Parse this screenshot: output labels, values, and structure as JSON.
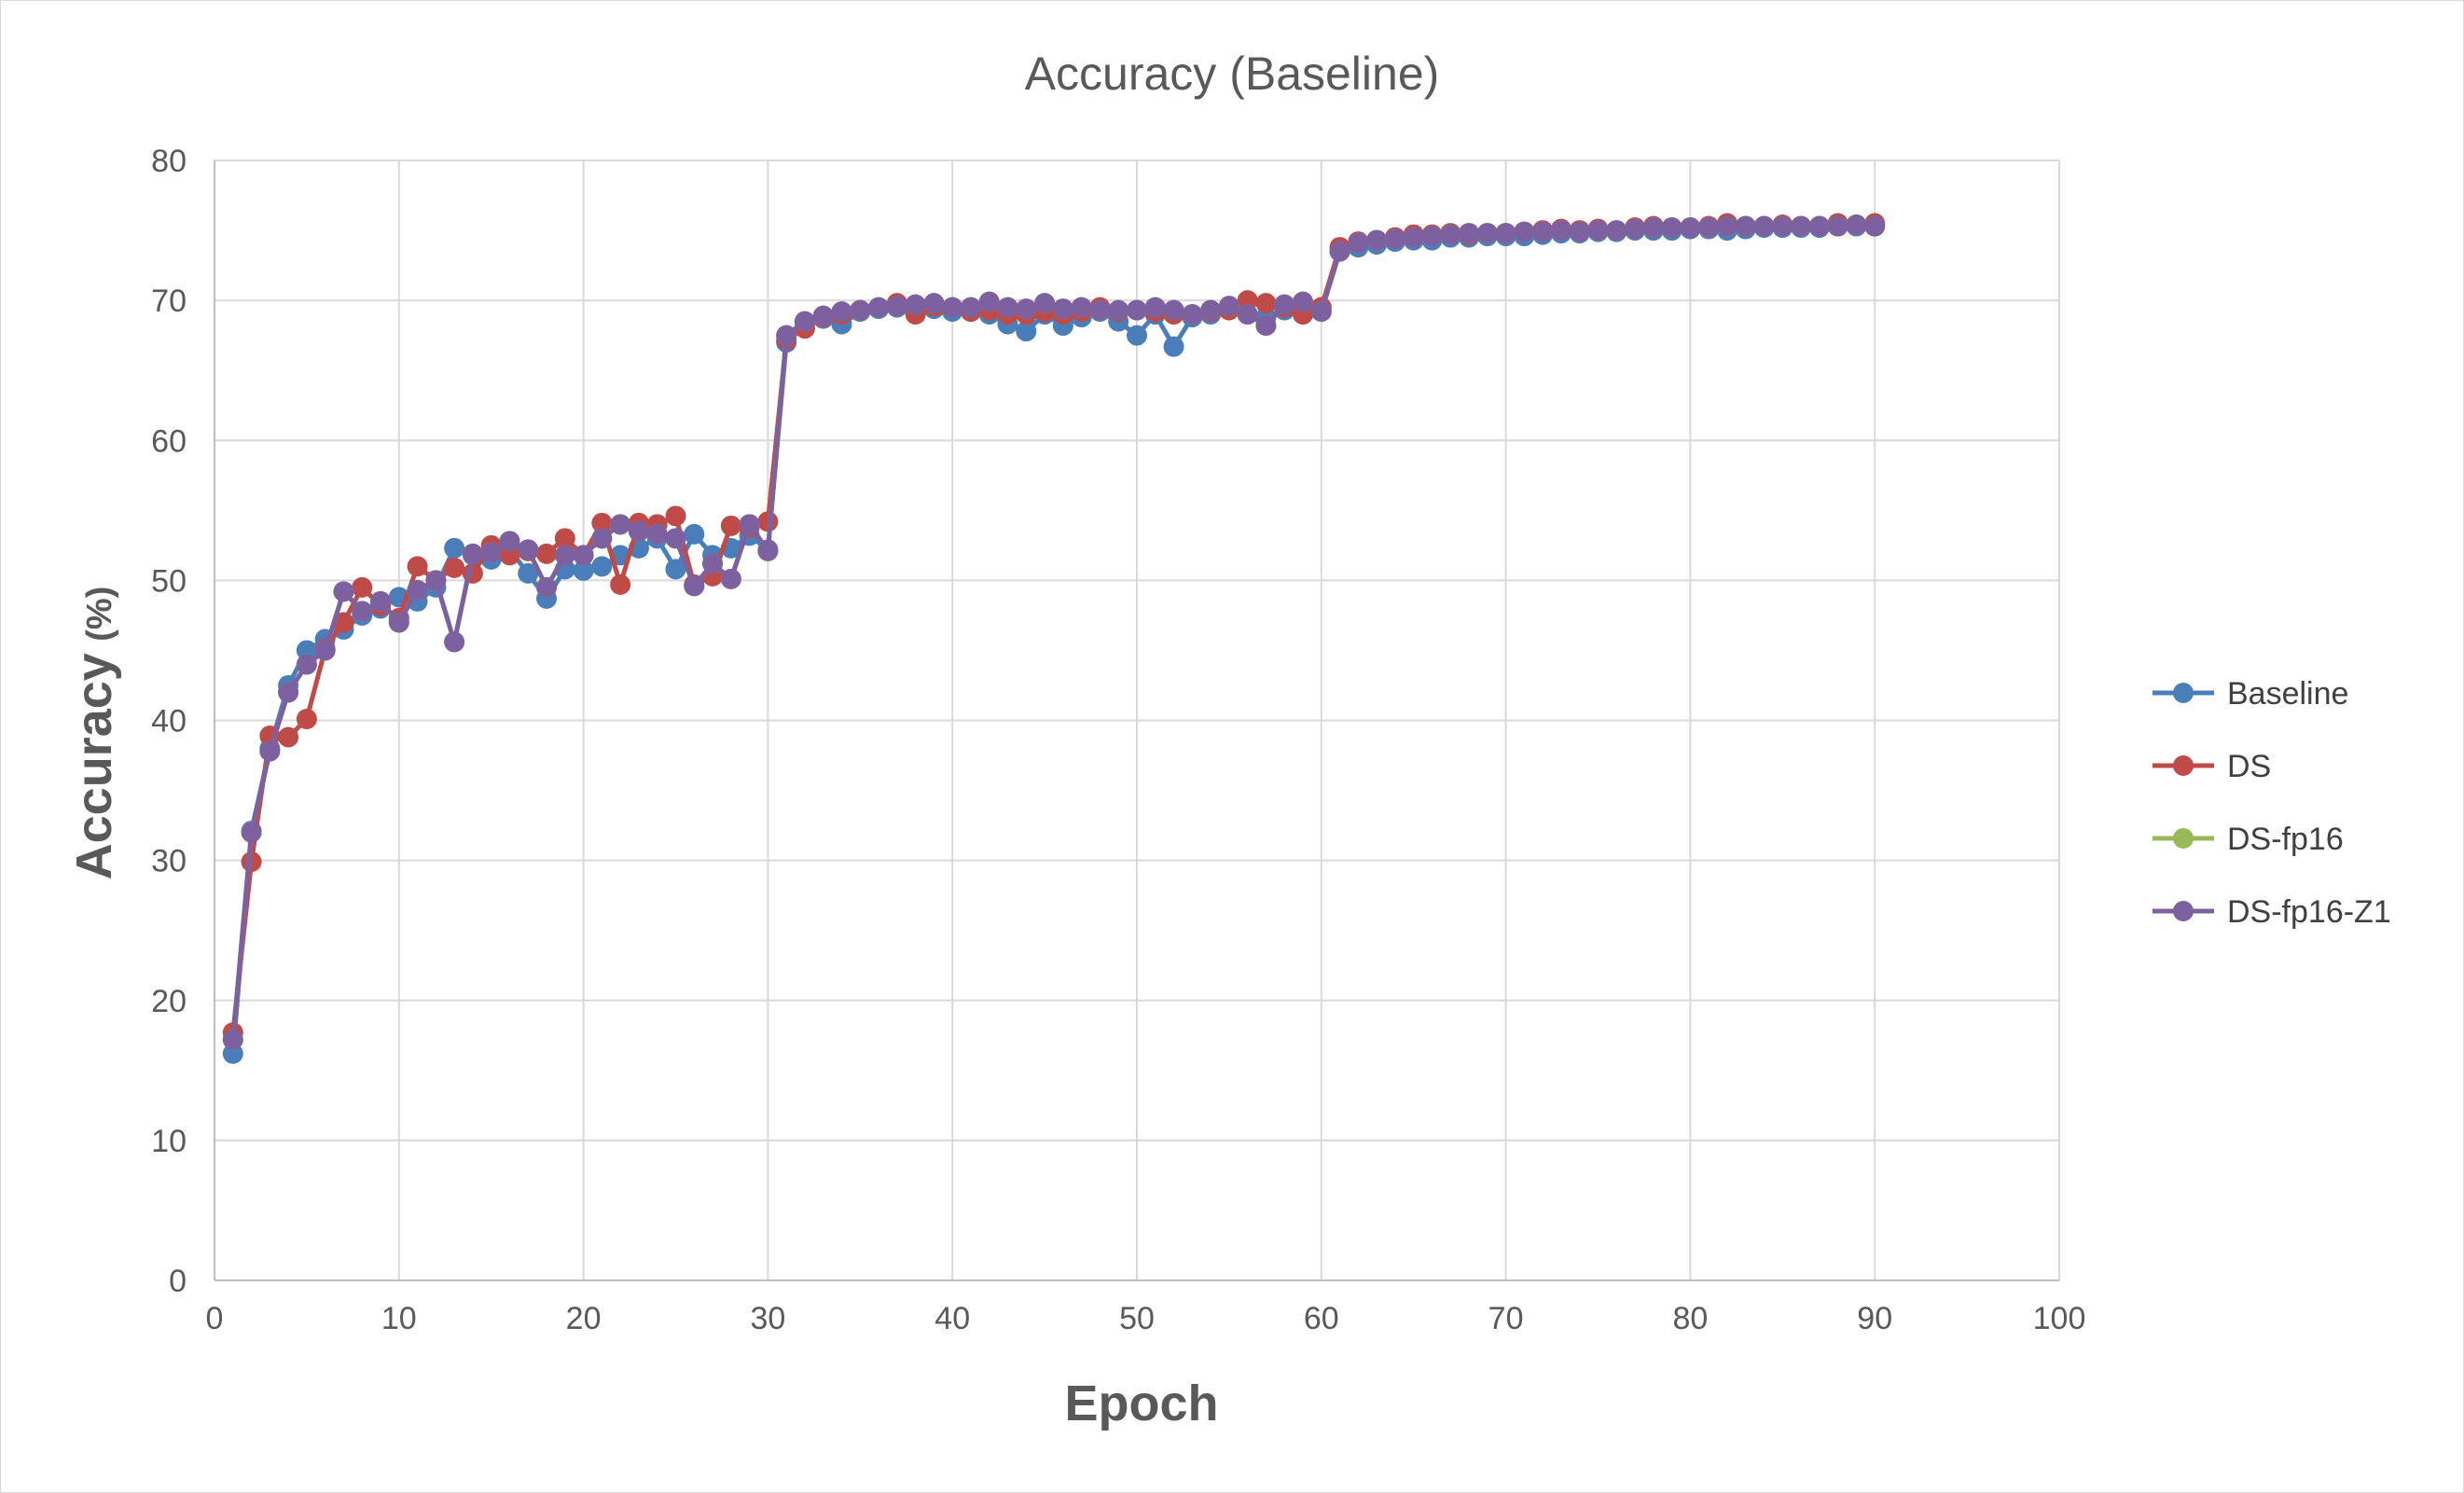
{
  "chart_data": {
    "type": "line",
    "title": "Accuracy (Baseline)",
    "xlabel": "Epoch",
    "ylabel": "Accuracy",
    "ylabel_unit": "(%)",
    "xlim": [
      0,
      100
    ],
    "ylim": [
      0,
      80
    ],
    "xticks": [
      0,
      10,
      20,
      30,
      40,
      50,
      60,
      70,
      80,
      90,
      100
    ],
    "yticks": [
      0,
      10,
      20,
      30,
      40,
      50,
      60,
      70,
      80
    ],
    "grid": true,
    "legend_position": "right",
    "x": [
      1,
      2,
      3,
      4,
      5,
      6,
      7,
      8,
      9,
      10,
      11,
      12,
      13,
      14,
      15,
      16,
      17,
      18,
      19,
      20,
      21,
      22,
      23,
      24,
      25,
      26,
      27,
      28,
      29,
      30,
      31,
      32,
      33,
      34,
      35,
      36,
      37,
      38,
      39,
      40,
      41,
      42,
      43,
      44,
      45,
      46,
      47,
      48,
      49,
      50,
      51,
      52,
      53,
      54,
      55,
      56,
      57,
      58,
      59,
      60,
      61,
      62,
      63,
      64,
      65,
      66,
      67,
      68,
      69,
      70,
      71,
      72,
      73,
      74,
      75,
      76,
      77,
      78,
      79,
      80,
      81,
      82,
      83,
      84,
      85,
      86,
      87,
      88,
      89,
      90
    ],
    "series": [
      {
        "name": "Baseline",
        "color": "#4a7ebb",
        "values": [
          16.2,
          32.1,
          38.0,
          42.5,
          45.0,
          45.8,
          46.5,
          47.5,
          48.0,
          48.8,
          48.5,
          49.5,
          52.3,
          51.8,
          51.5,
          52.2,
          50.5,
          48.7,
          50.8,
          50.7,
          51.0,
          51.8,
          52.3,
          53.0,
          50.8,
          53.3,
          51.8,
          52.3,
          53.2,
          52.2,
          67.0,
          68.3,
          68.7,
          68.3,
          69.2,
          69.4,
          69.5,
          69.3,
          69.4,
          69.2,
          69.2,
          69.0,
          68.3,
          67.8,
          69.0,
          68.2,
          68.8,
          69.2,
          68.5,
          67.5,
          69.0,
          66.7,
          68.8,
          69.0,
          69.5,
          69.0,
          68.8,
          69.3,
          69.5,
          69.5,
          73.5,
          73.8,
          74.0,
          74.2,
          74.3,
          74.3,
          74.5,
          74.5,
          74.6,
          74.6,
          74.6,
          74.7,
          74.8,
          74.8,
          74.9,
          74.9,
          75.0,
          75.0,
          75.0,
          75.1,
          75.1,
          75.0,
          75.1,
          75.2,
          75.2,
          75.2,
          75.2,
          75.3,
          75.3,
          75.3
        ]
      },
      {
        "name": "DS",
        "color": "#be4b48",
        "values": [
          17.7,
          29.9,
          38.9,
          38.8,
          40.1,
          45.1,
          47.0,
          49.5,
          48.2,
          47.3,
          51.0,
          50.0,
          50.9,
          50.5,
          52.5,
          51.8,
          52.1,
          51.9,
          53.0,
          51.8,
          54.1,
          49.7,
          54.1,
          54.0,
          54.6,
          49.7,
          50.3,
          53.9,
          53.8,
          54.2,
          67.2,
          68.0,
          68.8,
          69.0,
          69.3,
          69.5,
          69.8,
          69.0,
          69.6,
          69.5,
          69.2,
          69.3,
          69.0,
          69.0,
          69.2,
          69.0,
          69.2,
          69.5,
          69.2,
          69.3,
          69.2,
          69.0,
          69.0,
          69.2,
          69.3,
          70.0,
          69.8,
          69.5,
          69.0,
          69.5,
          73.8,
          74.2,
          74.3,
          74.5,
          74.7,
          74.7,
          74.8,
          74.7,
          74.8,
          74.8,
          74.9,
          75.0,
          75.1,
          75.0,
          75.1,
          75.0,
          75.2,
          75.3,
          75.2,
          75.2,
          75.3,
          75.5,
          75.3,
          75.3,
          75.4,
          75.3,
          75.3,
          75.5,
          75.4,
          75.5
        ]
      },
      {
        "name": "DS-fp16",
        "color": "#98b954",
        "values": [
          17.2,
          32.0,
          37.8,
          42.0,
          44.0,
          45.0,
          49.2,
          47.8,
          48.5,
          47.0,
          49.3,
          50.0,
          45.6,
          51.9,
          52.0,
          52.8,
          52.2,
          49.5,
          51.8,
          51.8,
          53.0,
          54.0,
          53.5,
          53.3,
          53.0,
          49.6,
          51.2,
          50.1,
          54.0,
          52.1,
          67.5,
          68.5,
          68.9,
          69.2,
          69.3,
          69.5,
          69.6,
          69.7,
          69.8,
          69.5,
          69.5,
          69.9,
          69.5,
          69.4,
          69.8,
          69.4,
          69.5,
          69.3,
          69.3,
          69.3,
          69.5,
          69.3,
          69.0,
          69.3,
          69.6,
          69.0,
          68.2,
          69.7,
          69.9,
          69.2,
          73.5,
          74.1,
          74.3,
          74.4,
          74.5,
          74.6,
          74.7,
          74.8,
          74.8,
          74.8,
          74.9,
          74.9,
          75.0,
          74.9,
          75.0,
          75.0,
          75.1,
          75.2,
          75.2,
          75.2,
          75.2,
          75.3,
          75.3,
          75.3,
          75.3,
          75.3,
          75.3,
          75.3,
          75.4,
          75.3
        ]
      },
      {
        "name": "DS-fp16-Z1",
        "color": "#7d60a0",
        "values": [
          17.2,
          32.0,
          37.8,
          42.0,
          44.0,
          45.0,
          49.2,
          47.8,
          48.5,
          47.0,
          49.3,
          50.0,
          45.6,
          51.9,
          52.0,
          52.8,
          52.2,
          49.5,
          51.8,
          51.8,
          53.0,
          54.0,
          53.5,
          53.3,
          53.0,
          49.6,
          51.2,
          50.1,
          54.0,
          52.1,
          67.5,
          68.5,
          68.9,
          69.2,
          69.3,
          69.5,
          69.6,
          69.7,
          69.8,
          69.5,
          69.5,
          69.9,
          69.5,
          69.4,
          69.8,
          69.4,
          69.5,
          69.3,
          69.3,
          69.3,
          69.5,
          69.3,
          69.0,
          69.3,
          69.6,
          69.0,
          68.2,
          69.7,
          69.9,
          69.2,
          73.5,
          74.1,
          74.3,
          74.4,
          74.5,
          74.6,
          74.7,
          74.8,
          74.8,
          74.8,
          74.9,
          74.9,
          75.0,
          74.9,
          75.0,
          75.0,
          75.1,
          75.2,
          75.2,
          75.2,
          75.2,
          75.3,
          75.3,
          75.3,
          75.3,
          75.3,
          75.3,
          75.3,
          75.4,
          75.3
        ]
      }
    ]
  }
}
